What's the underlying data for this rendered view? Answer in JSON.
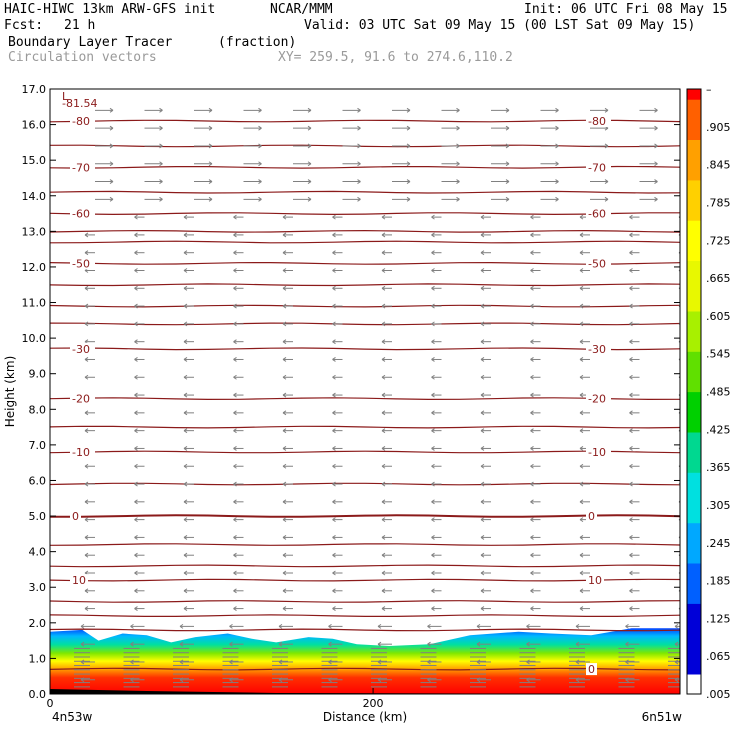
{
  "header": {
    "model": "HAIC-HIWC 13km ARW-GFS init",
    "org": "NCAR/MMM",
    "init": "Init: 06 UTC Fri 08 May 15",
    "fcst_label": "Fcst:",
    "fcst_value": "21 h",
    "valid": "Valid: 03 UTC Sat 09 May 15 (00 LST Sat 09 May 15)",
    "field": "Boundary Layer Tracer",
    "field_units": "(fraction)",
    "vectors": "Circulation vectors",
    "xy": "XY= 259.5, 91.6 to 274.6,110.2"
  },
  "colors": {
    "contour": "#8b1a1a",
    "vector": "#808080",
    "colorbar": [
      "#ffffff",
      "#0000d8",
      "#0060ff",
      "#00a8ff",
      "#00e0e0",
      "#00d890",
      "#00d000",
      "#60e000",
      "#a8f000",
      "#e8f800",
      "#ffff00",
      "#ffd000",
      "#ffa000",
      "#ff6000",
      "#ff0000"
    ]
  },
  "chart_data": {
    "type": "cross-section",
    "xlabel": "Distance (km)",
    "ylabel": "Height (km)",
    "xlim": [
      0,
      390
    ],
    "ylim": [
      0,
      17
    ],
    "x_ticks": [
      {
        "value": 0,
        "label": "0"
      },
      {
        "value": 200,
        "label": "200"
      }
    ],
    "x_end_labels": {
      "left": "4n53w",
      "right": "6n51w"
    },
    "y_ticks": [
      "0.0",
      "1.0",
      "2.0",
      "3.0",
      "4.0",
      "5.0",
      "6.0",
      "7.0",
      "8.0",
      "9.0",
      "10.0",
      "11.0",
      "12.0",
      "13.0",
      "14.0",
      "15.0",
      "16.0",
      "17.0"
    ],
    "contours": {
      "field": "temperature",
      "low_marker": "L",
      "min_label": "-81.54",
      "lines": [
        {
          "value": 10,
          "height": 3.2,
          "labels": [
            "10",
            "10"
          ]
        },
        {
          "value": 0,
          "height": 5.0,
          "labels": [
            "0",
            "0"
          ]
        },
        {
          "value": -10,
          "height": 6.8,
          "labels": [
            "-10",
            "-10"
          ]
        },
        {
          "value": -20,
          "height": 8.3,
          "labels": [
            "-20",
            "-20"
          ]
        },
        {
          "value": -30,
          "height": 9.7,
          "labels": [
            "-30",
            "-30"
          ]
        },
        {
          "value": -50,
          "height": 12.1,
          "labels": [
            "-50",
            "-50"
          ]
        },
        {
          "value": -60,
          "height": 13.5,
          "labels": [
            "-60",
            "-60"
          ]
        },
        {
          "value": -70,
          "height": 14.8,
          "labels": [
            "-70",
            "-70"
          ]
        },
        {
          "value": -80,
          "height": 16.1,
          "labels": [
            "-80",
            "-80"
          ]
        },
        {
          "value": 0,
          "height": 0.7,
          "labels": [
            "",
            "0"
          ]
        }
      ],
      "unlabeled_heights": [
        1.8,
        2.2,
        2.6,
        3.6,
        4.2,
        5.9,
        7.5,
        10.4,
        10.9,
        11.5,
        12.7,
        13.0,
        14.1,
        15.4
      ]
    },
    "tracer_layer": {
      "top_km": [
        [
          0,
          1.75
        ],
        [
          20,
          1.8
        ],
        [
          30,
          1.5
        ],
        [
          45,
          1.7
        ],
        [
          60,
          1.65
        ],
        [
          75,
          1.45
        ],
        [
          90,
          1.6
        ],
        [
          110,
          1.7
        ],
        [
          125,
          1.55
        ],
        [
          140,
          1.45
        ],
        [
          160,
          1.6
        ],
        [
          175,
          1.55
        ],
        [
          190,
          1.4
        ],
        [
          210,
          1.35
        ],
        [
          235,
          1.4
        ],
        [
          260,
          1.65
        ],
        [
          290,
          1.75
        ],
        [
          310,
          1.7
        ],
        [
          335,
          1.65
        ],
        [
          360,
          1.85
        ],
        [
          390,
          1.85
        ]
      ]
    },
    "colorbar": {
      "labels": [
        "–",
        ".905",
        ".845",
        ".785",
        ".725",
        ".665",
        ".605",
        ".545",
        ".485",
        ".425",
        ".365",
        ".305",
        ".245",
        ".185",
        ".125",
        ".065",
        ".005"
      ]
    }
  }
}
